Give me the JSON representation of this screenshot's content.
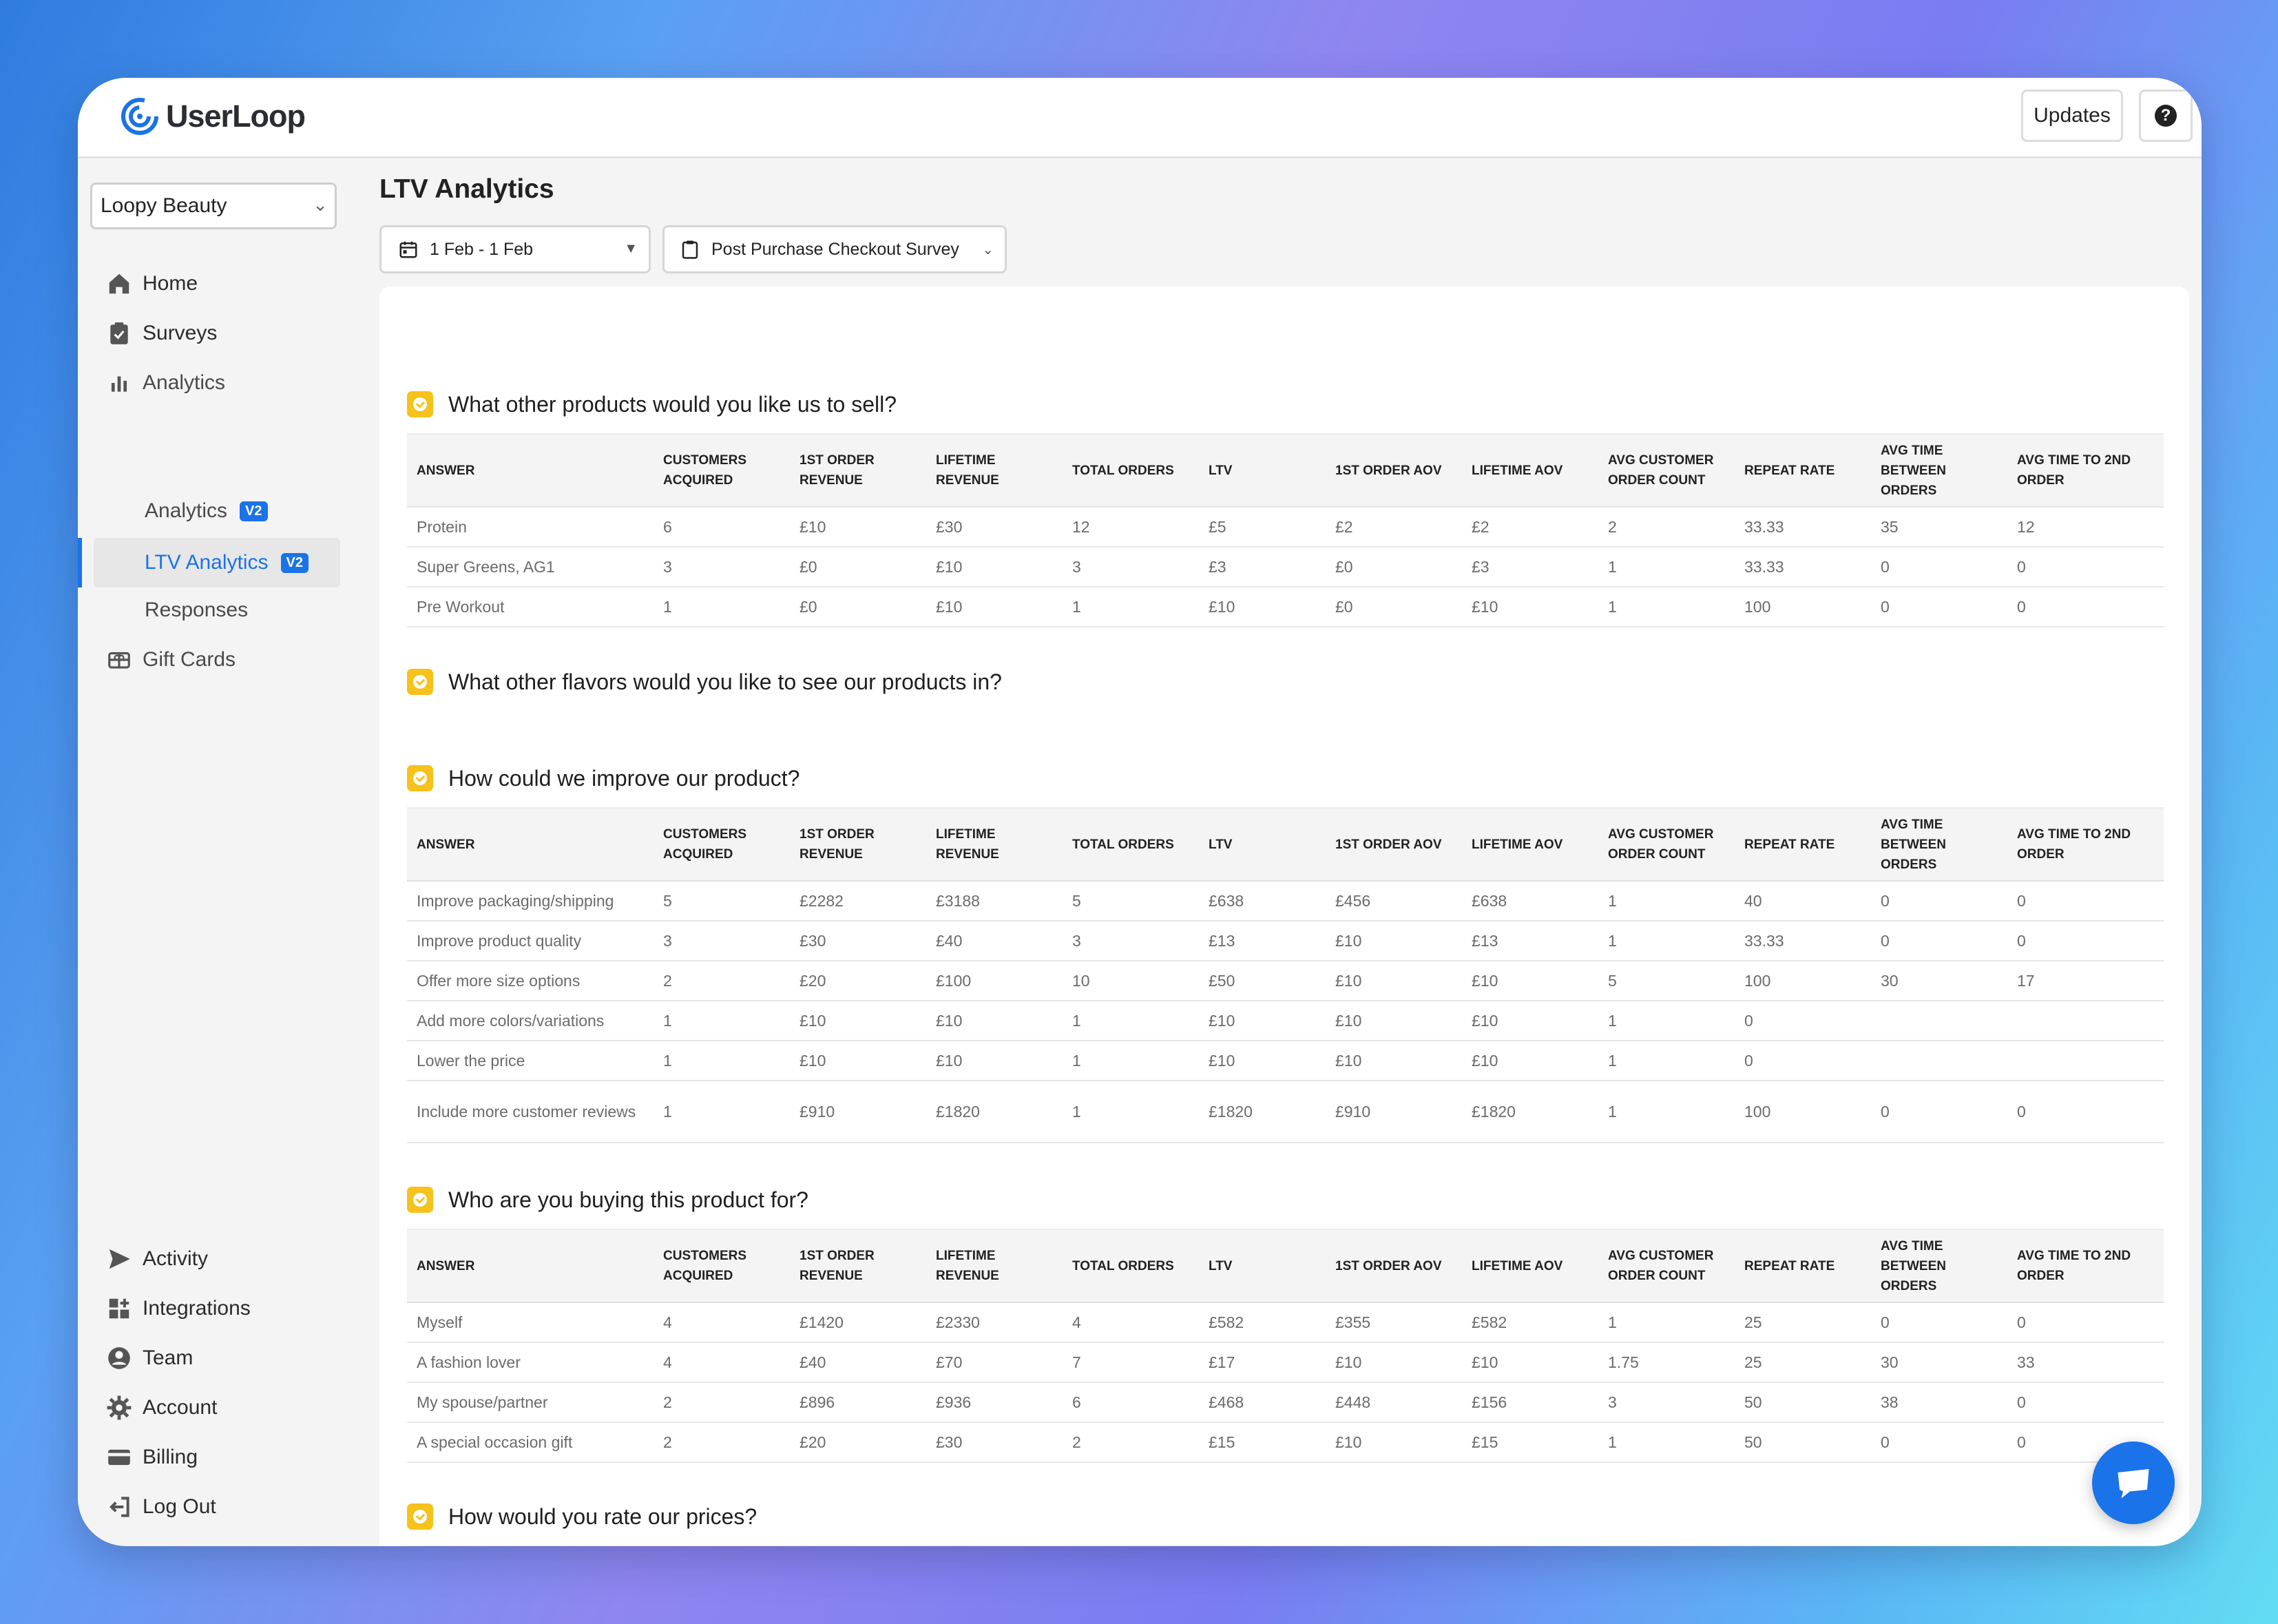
{
  "app": {
    "name": "UserLoop",
    "updates_label": "Updates",
    "help_label": "?"
  },
  "sidebar": {
    "store": "Loopy Beauty",
    "items": [
      {
        "label": "Home"
      },
      {
        "label": "Surveys"
      },
      {
        "label": "Analytics"
      },
      {
        "label": "Analytics",
        "badge": "V2"
      },
      {
        "label": "LTV Analytics",
        "badge": "V2"
      },
      {
        "label": "Responses"
      },
      {
        "label": "Gift Cards"
      }
    ],
    "bottom_items": [
      {
        "label": "Activity"
      },
      {
        "label": "Integrations"
      },
      {
        "label": "Team"
      },
      {
        "label": "Account"
      },
      {
        "label": "Billing"
      },
      {
        "label": "Log Out"
      }
    ]
  },
  "page": {
    "title": "LTV Analytics",
    "date_range": "1 Feb - 1 Feb",
    "survey": "Post Purchase Checkout Survey"
  },
  "columns": [
    "ANSWER",
    "CUSTOMERS ACQUIRED",
    "1ST ORDER REVENUE",
    "LIFETIME REVENUE",
    "TOTAL ORDERS",
    "LTV",
    "1ST ORDER AOV",
    "LIFETIME AOV",
    "AVG CUSTOMER ORDER COUNT",
    "REPEAT RATE",
    "AVG TIME BETWEEN ORDERS",
    "AVG TIME TO 2ND ORDER"
  ],
  "questions": [
    {
      "title": "What other products would you like us to sell?",
      "rows": [
        [
          "Protein",
          "6",
          "£10",
          "£30",
          "12",
          "£5",
          "£2",
          "£2",
          "2",
          "33.33",
          "35",
          "12"
        ],
        [
          "Super Greens, AG1",
          "3",
          "£0",
          "£10",
          "3",
          "£3",
          "£0",
          "£3",
          "1",
          "33.33",
          "0",
          "0"
        ],
        [
          "Pre Workout",
          "1",
          "£0",
          "£10",
          "1",
          "£10",
          "£0",
          "£10",
          "1",
          "100",
          "0",
          "0"
        ]
      ]
    },
    {
      "title": "What other flavors would you like to see our products in?",
      "rows": []
    },
    {
      "title": "How could we improve our product?",
      "rows": [
        [
          "Improve packaging/shipping",
          "5",
          "£2282",
          "£3188",
          "5",
          "£638",
          "£456",
          "£638",
          "1",
          "40",
          "0",
          "0"
        ],
        [
          "Improve product quality",
          "3",
          "£30",
          "£40",
          "3",
          "£13",
          "£10",
          "£13",
          "1",
          "33.33",
          "0",
          "0"
        ],
        [
          "Offer more size options",
          "2",
          "£20",
          "£100",
          "10",
          "£50",
          "£10",
          "£10",
          "5",
          "100",
          "30",
          "17"
        ],
        [
          "Add more colors/variations",
          "1",
          "£10",
          "£10",
          "1",
          "£10",
          "£10",
          "£10",
          "1",
          "0",
          "",
          ""
        ],
        [
          "Lower the price",
          "1",
          "£10",
          "£10",
          "1",
          "£10",
          "£10",
          "£10",
          "1",
          "0",
          "",
          ""
        ],
        [
          "Include more customer reviews",
          "1",
          "£910",
          "£1820",
          "1",
          "£1820",
          "£910",
          "£1820",
          "1",
          "100",
          "0",
          "0"
        ]
      ]
    },
    {
      "title": "Who are you buying this product for?",
      "rows": [
        [
          "Myself",
          "4",
          "£1420",
          "£2330",
          "4",
          "£582",
          "£355",
          "£582",
          "1",
          "25",
          "0",
          "0"
        ],
        [
          "A fashion lover",
          "4",
          "£40",
          "£70",
          "7",
          "£17",
          "£10",
          "£10",
          "1.75",
          "25",
          "30",
          "33"
        ],
        [
          "My spouse/partner",
          "2",
          "£896",
          "£936",
          "6",
          "£468",
          "£448",
          "£156",
          "3",
          "50",
          "38",
          "0"
        ],
        [
          "A special occasion gift",
          "2",
          "£20",
          "£30",
          "2",
          "£15",
          "£10",
          "£15",
          "1",
          "50",
          "0",
          "0"
        ]
      ]
    },
    {
      "title": "How would you rate our prices?",
      "rows": []
    }
  ],
  "colors": {
    "accent": "#1a73e8",
    "question_icon": "#f6c21b"
  }
}
